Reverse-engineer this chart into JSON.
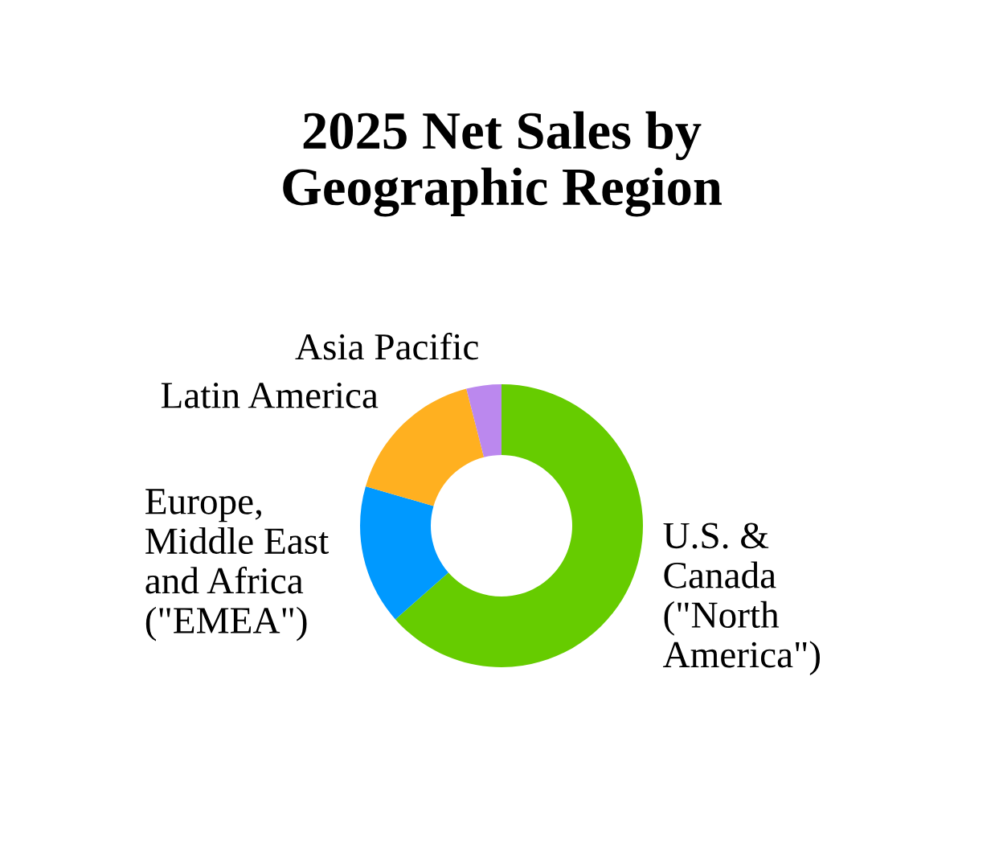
{
  "chart_data": {
    "type": "donut",
    "title": "2025 Net Sales by\nGeographic Region",
    "categories": [
      "U.S. &\nCanada\n(\"North\nAmerica\")",
      "Europe,\nMiddle East\nand Africa\n(\"EMEA\")",
      "Latin America",
      "Asia Pacific"
    ],
    "values": [
      63.5,
      16,
      16.5,
      4
    ],
    "colors": [
      "#66cc00",
      "#0099ff",
      "#ffb020",
      "#bb88ee"
    ],
    "legend": false
  }
}
